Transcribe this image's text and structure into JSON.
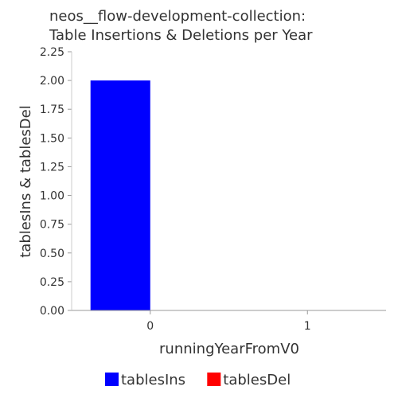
{
  "chart_data": {
    "type": "bar",
    "title_line1": "neos__flow-development-collection:",
    "title_line2": "Table Insertions & Deletions per Year",
    "xlabel": "runningYearFromV0",
    "ylabel": "tablesIns & tablesDel",
    "categories": [
      "0",
      "1"
    ],
    "series": [
      {
        "name": "tablesIns",
        "color": "#0000ff",
        "values": [
          2,
          0
        ]
      },
      {
        "name": "tablesDel",
        "color": "#ff0000",
        "values": [
          0,
          0
        ]
      }
    ],
    "ylim": [
      0,
      2.25
    ],
    "yticks": [
      "0.00",
      "0.25",
      "0.50",
      "0.75",
      "1.00",
      "1.25",
      "1.50",
      "1.75",
      "2.00",
      "2.25"
    ],
    "legend_position": "bottom"
  }
}
